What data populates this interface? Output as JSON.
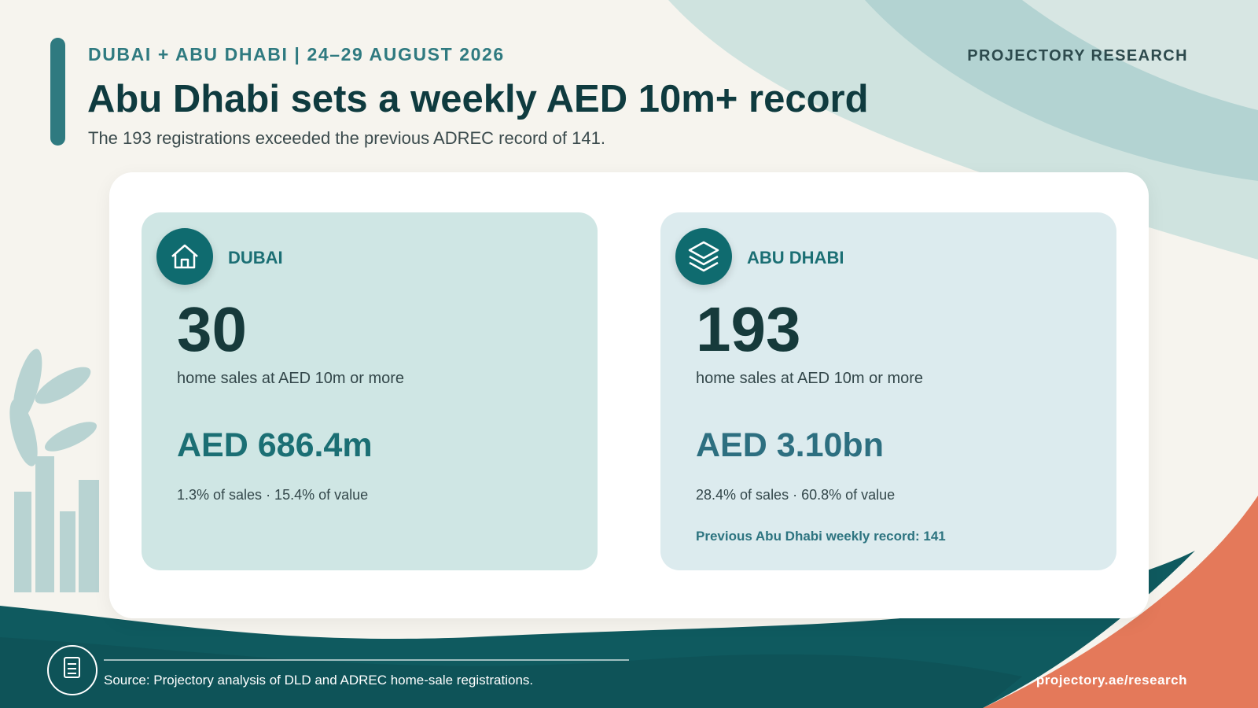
{
  "header": {
    "kicker": "DUBAI + ABU DHABI | 24–29 AUGUST 2026",
    "title": "Abu Dhabi sets a weekly AED 10m+ record",
    "subtitle": "The 193 registrations exceeded the previous ADREC record of 141.",
    "brand": "PROJECTORY RESEARCH"
  },
  "cards": [
    {
      "name": "DUBAI",
      "count": "30",
      "count_label": "home sales at AED 10m or more",
      "value": "AED 686.4m",
      "shares": "1.3% of sales · 15.4% of value"
    },
    {
      "name": "ABU DHABI",
      "count": "193",
      "count_label": "home sales at AED 10m or more",
      "value": "AED 3.10bn",
      "shares": "28.4% of sales · 60.8% of value",
      "note": "Previous Abu Dhabi weekly record: 141"
    }
  ],
  "footer": {
    "source": "Source: Projectory analysis of DLD and ADREC home-sale registrations.",
    "url": "projectory.ae/research"
  }
}
